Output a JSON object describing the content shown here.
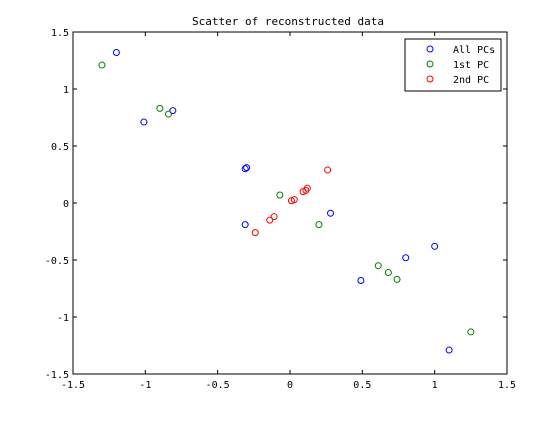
{
  "chart_data": {
    "type": "scatter",
    "title": "Scatter of reconstructed data",
    "xlabel": "",
    "ylabel": "",
    "xlim": [
      -1.5,
      1.5
    ],
    "ylim": [
      -1.5,
      1.5
    ],
    "xticks": [
      -1.5,
      -1,
      -0.5,
      0,
      0.5,
      1,
      1.5
    ],
    "xtick_labels": [
      "-1.5",
      "-1",
      "-0.5",
      "0",
      "0.5",
      "1",
      "1.5"
    ],
    "yticks": [
      -1.5,
      -1,
      -0.5,
      0,
      0.5,
      1,
      1.5
    ],
    "ytick_labels": [
      "-1.5",
      "-1",
      "-0.5",
      "0",
      "0.5",
      "1",
      "1.5"
    ],
    "grid": false,
    "legend_position": "top-right",
    "marker": "open-circle",
    "series": [
      {
        "name": "All PCs",
        "color": "#0000ff",
        "points": [
          [
            -1.2,
            1.32
          ],
          [
            -1.01,
            0.71
          ],
          [
            -0.81,
            0.81
          ],
          [
            -0.31,
            0.3
          ],
          [
            -0.3,
            0.31
          ],
          [
            -0.31,
            -0.19
          ],
          [
            0.28,
            -0.09
          ],
          [
            0.49,
            -0.68
          ],
          [
            0.8,
            -0.48
          ],
          [
            1.0,
            -0.38
          ],
          [
            1.1,
            -1.29
          ]
        ]
      },
      {
        "name": "1st PC",
        "color": "#008000",
        "points": [
          [
            -1.3,
            1.21
          ],
          [
            -0.9,
            0.83
          ],
          [
            -0.84,
            0.78
          ],
          [
            -0.07,
            0.07
          ],
          [
            0.2,
            -0.19
          ],
          [
            0.61,
            -0.55
          ],
          [
            0.68,
            -0.61
          ],
          [
            0.74,
            -0.67
          ],
          [
            1.25,
            -1.13
          ]
        ]
      },
      {
        "name": "2nd PC",
        "color": "#ff0000",
        "points": [
          [
            -0.24,
            -0.26
          ],
          [
            -0.14,
            -0.15
          ],
          [
            -0.11,
            -0.12
          ],
          [
            0.01,
            0.02
          ],
          [
            0.03,
            0.03
          ],
          [
            0.09,
            0.1
          ],
          [
            0.11,
            0.11
          ],
          [
            0.12,
            0.13
          ],
          [
            0.26,
            0.29
          ]
        ]
      }
    ]
  }
}
